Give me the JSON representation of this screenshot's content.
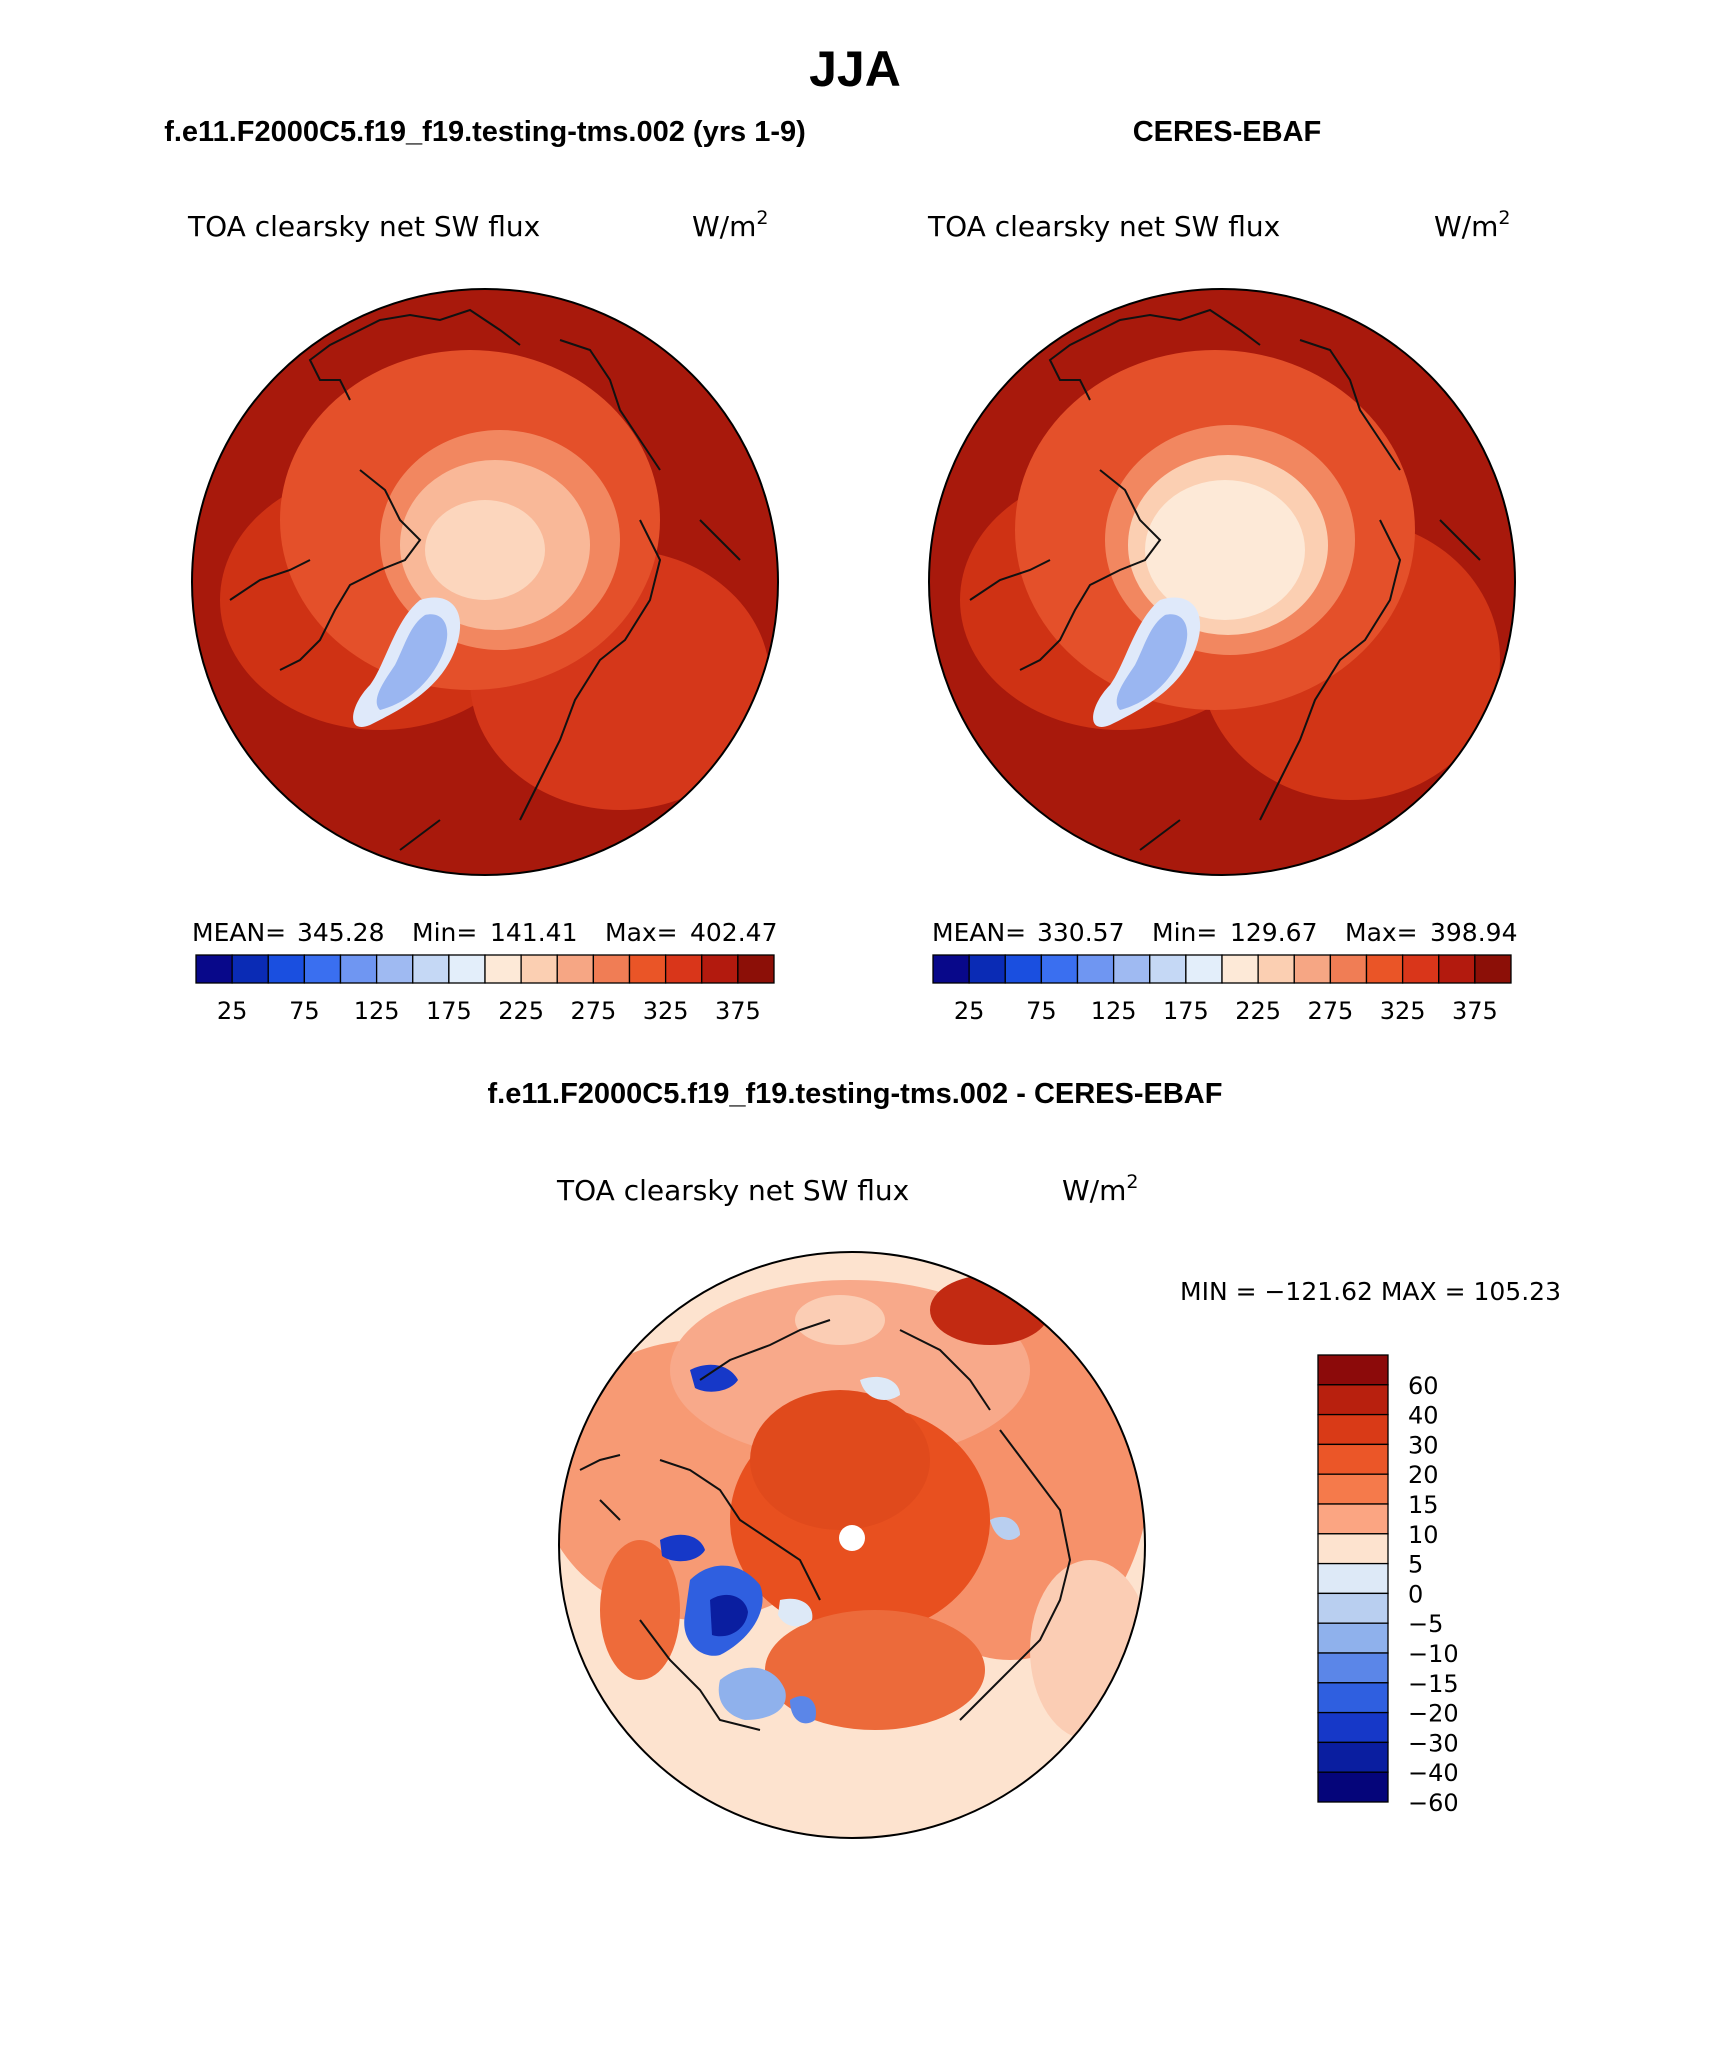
{
  "page_title": "JJA",
  "panels": [
    {
      "case_title": "f.e11.F2000C5.f19_f19.testing-tms.002 (yrs 1-9)",
      "variable": "TOA clearsky net SW flux",
      "units": "W/m",
      "units_exp": "2",
      "stats": {
        "mean_label": "MEAN=",
        "mean": "345.28",
        "min_label": "Min=",
        "min": "141.41",
        "max_label": "Max=",
        "max": "402.47"
      }
    },
    {
      "case_title": "CERES-EBAF",
      "variable": "TOA clearsky net SW flux",
      "units": "W/m",
      "units_exp": "2",
      "stats": {
        "mean_label": "MEAN=",
        "mean": "330.57",
        "min_label": "Min=",
        "min": "129.67",
        "max_label": "Max=",
        "max": "398.94"
      }
    }
  ],
  "colorbar": {
    "colors": [
      "#08088a",
      "#0a2bb5",
      "#1a4fe0",
      "#3a6ff0",
      "#6f96f2",
      "#9fbaf2",
      "#c5d8f5",
      "#e3eefa",
      "#fde9d7",
      "#fbcfb2",
      "#f6a684",
      "#f07d55",
      "#ea5527",
      "#d9361a",
      "#b31a0e",
      "#8c0f07"
    ],
    "tick_labels": [
      "25",
      "75",
      "125",
      "175",
      "225",
      "275",
      "325",
      "375"
    ]
  },
  "diff_panel": {
    "title": "f.e11.F2000C5.f19_f19.testing-tms.002 - CERES-EBAF",
    "variable": "TOA clearsky net SW flux",
    "units": "W/m",
    "units_exp": "2",
    "minmax_text": "MIN = −121.62  MAX = 105.23",
    "colorbar_colors": [
      "#8c0a0a",
      "#b8200e",
      "#d93a17",
      "#eb5628",
      "#f57a4b",
      "#fba582",
      "#fde3cf",
      "#dde9f7",
      "#b9cff0",
      "#8fb1ec",
      "#5b86e8",
      "#2f5fe0",
      "#1638c8",
      "#0a1ea0",
      "#05057a"
    ],
    "colorbar_labels": [
      "60",
      "40",
      "30",
      "20",
      "15",
      "10",
      "5",
      "0",
      "−5",
      "−10",
      "−15",
      "−20",
      "−30",
      "−40",
      "−60"
    ]
  }
}
